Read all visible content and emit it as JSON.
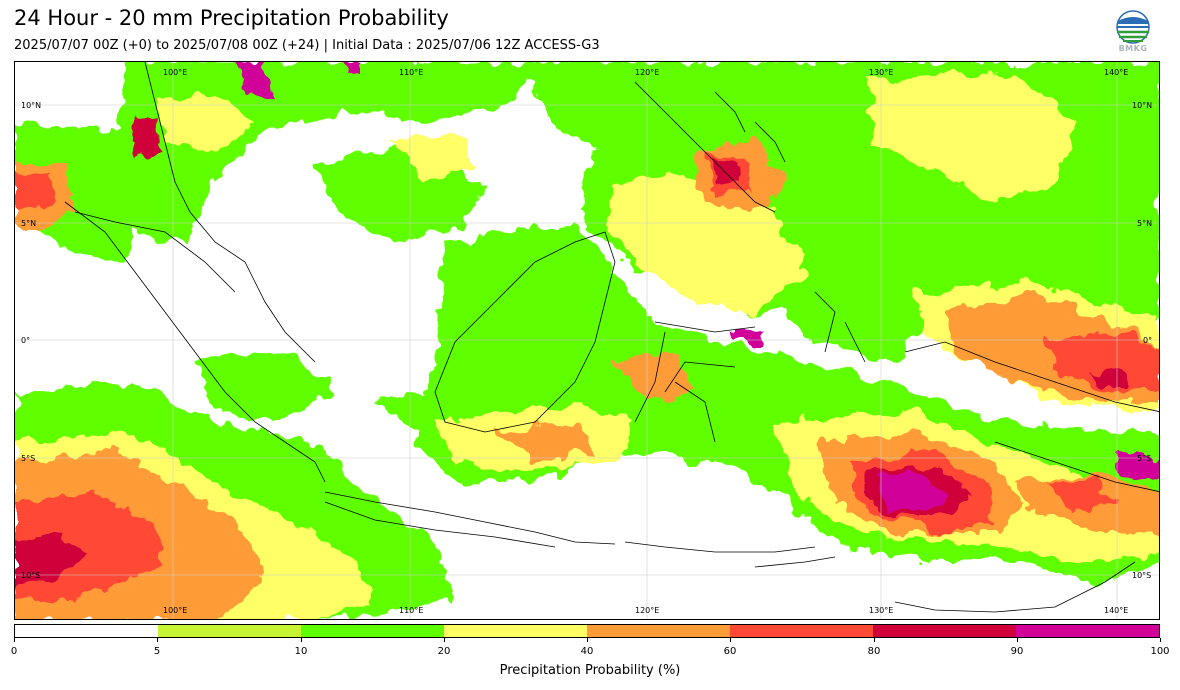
{
  "header": {
    "title": "24 Hour - 20 mm Precipitation Probability",
    "subtitle": "2025/07/07 00Z (+0) to 2025/07/08 00Z (+24) | Initial Data : 2025/07/06 12Z ACCESS-G3",
    "logo_text": "BMKG"
  },
  "map": {
    "lon_labels": [
      "100°E",
      "110°E",
      "120°E",
      "130°E",
      "140°E"
    ],
    "lat_labels": [
      "10°N",
      "5°N",
      "0°",
      "5°S",
      "10°S"
    ]
  },
  "colorbar": {
    "label": "Precipitation Probability (%)",
    "ticks": [
      "0",
      "5",
      "10",
      "20",
      "40",
      "60",
      "80",
      "90",
      "100"
    ],
    "colors": [
      "#ffffff",
      "#c8f533",
      "#5fff00",
      "#ffff66",
      "#ff9c38",
      "#ff4a36",
      "#d0003a",
      "#d10098"
    ]
  }
}
